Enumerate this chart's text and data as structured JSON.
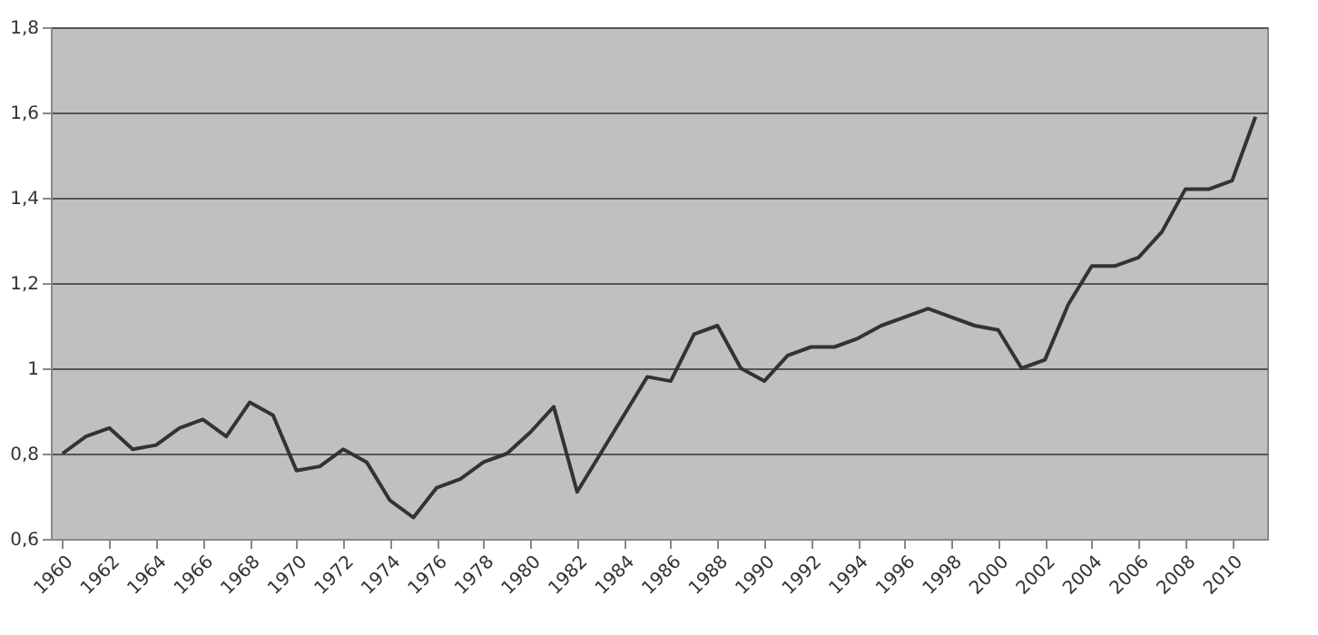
{
  "chart_data": {
    "type": "line",
    "x": [
      1960,
      1961,
      1962,
      1963,
      1964,
      1965,
      1966,
      1967,
      1968,
      1969,
      1970,
      1971,
      1972,
      1973,
      1974,
      1975,
      1976,
      1977,
      1978,
      1979,
      1980,
      1981,
      1982,
      1983,
      1984,
      1985,
      1986,
      1987,
      1988,
      1989,
      1990,
      1991,
      1992,
      1993,
      1994,
      1995,
      1996,
      1997,
      1998,
      1999,
      2000,
      2001,
      2002,
      2003,
      2004,
      2005,
      2006,
      2007,
      2008,
      2009,
      2010,
      2011
    ],
    "series": [
      {
        "color": "#333333",
        "values": [
          0.8,
          0.84,
          0.86,
          0.81,
          0.82,
          0.86,
          0.88,
          0.84,
          0.92,
          0.89,
          0.76,
          0.77,
          0.81,
          0.78,
          0.69,
          0.65,
          0.72,
          0.74,
          0.78,
          0.8,
          0.85,
          0.91,
          0.71,
          0.8,
          0.89,
          0.98,
          0.97,
          1.08,
          1.1,
          1.0,
          0.97,
          1.03,
          1.05,
          1.05,
          1.07,
          1.1,
          1.12,
          1.14,
          1.12,
          1.1,
          1.09,
          1.0,
          1.02,
          1.15,
          1.24,
          1.24,
          1.26,
          1.32,
          1.42,
          1.42,
          1.44,
          1.59
        ]
      }
    ],
    "xlim": [
      1959.5,
      2011.5
    ],
    "xticks": [
      1960,
      1962,
      1964,
      1966,
      1968,
      1970,
      1972,
      1974,
      1976,
      1978,
      1980,
      1982,
      1984,
      1986,
      1988,
      1990,
      1992,
      1994,
      1996,
      1998,
      2000,
      2002,
      2004,
      2006,
      2008,
      2010
    ],
    "ylim": [
      0.6,
      1.8
    ],
    "yticks": [
      {
        "value": 0.6,
        "label": "0,6"
      },
      {
        "value": 0.8,
        "label": "0,8"
      },
      1,
      {
        "value": 1.2,
        "label": "1,2"
      },
      {
        "value": 1.4,
        "label": "1,4"
      },
      {
        "value": 1.6,
        "label": "1,6"
      },
      {
        "value": 1.8,
        "label": "1,8"
      }
    ],
    "grid": "y",
    "marker": "none",
    "line_style": "solid"
  }
}
